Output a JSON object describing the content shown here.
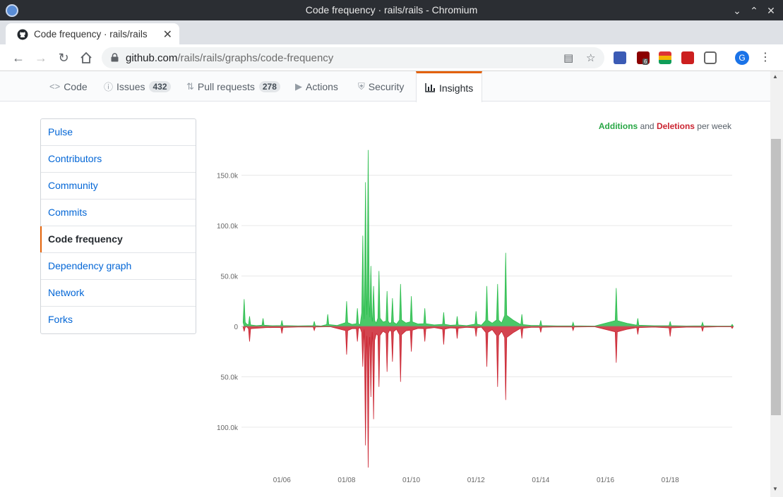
{
  "window": {
    "title": "Code frequency · rails/rails - Chromium"
  },
  "browser": {
    "tab_title": "Code frequency · rails/rails",
    "new_tab_label": "+",
    "url_host": "github.com",
    "url_path": "/rails/rails/graphs/code-frequency",
    "extension_badge": "6",
    "profile_initial": "G"
  },
  "repo_nav": {
    "tabs": [
      {
        "label": "Code",
        "icon": "code-icon"
      },
      {
        "label": "Issues",
        "icon": "issue-icon",
        "count": "432"
      },
      {
        "label": "Pull requests",
        "icon": "pull-request-icon",
        "count": "278"
      },
      {
        "label": "Actions",
        "icon": "play-icon"
      },
      {
        "label": "Security",
        "icon": "shield-icon"
      },
      {
        "label": "Insights",
        "icon": "graph-icon",
        "selected": true
      }
    ]
  },
  "sidebar": {
    "items": [
      {
        "label": "Pulse"
      },
      {
        "label": "Contributors"
      },
      {
        "label": "Community"
      },
      {
        "label": "Commits"
      },
      {
        "label": "Code frequency",
        "selected": true
      },
      {
        "label": "Dependency graph"
      },
      {
        "label": "Network"
      },
      {
        "label": "Forks"
      }
    ]
  },
  "legend": {
    "additions": "Additions",
    "and": "and",
    "deletions": "Deletions",
    "suffix": "per week"
  },
  "chart_data": {
    "type": "area",
    "title": "",
    "xlabel": "",
    "ylabel": "",
    "x_ticks": [
      "01/06",
      "01/08",
      "01/10",
      "01/12",
      "01/14",
      "01/16",
      "01/18"
    ],
    "y_ticks_top": [
      "150.0k",
      "100.0k",
      "50.0k",
      "0"
    ],
    "y_ticks_bottom": [
      "50.0k",
      "100.0k"
    ],
    "ylim": [
      -140000,
      175000
    ],
    "grid": true,
    "colors": {
      "additions": "#2cbe4e",
      "deletions": "#cb2431"
    },
    "series": [
      {
        "name": "Additions",
        "points": [
          [
            "2004-11",
            27000
          ],
          [
            "2005-01",
            10000
          ],
          [
            "2005-06",
            8000
          ],
          [
            "2006-01",
            6000
          ],
          [
            "2007-01",
            5000
          ],
          [
            "2007-06",
            12000
          ],
          [
            "2008-01",
            25000
          ],
          [
            "2008-05",
            18000
          ],
          [
            "2008-07",
            90000
          ],
          [
            "2008-08",
            143000
          ],
          [
            "2008-09",
            175000
          ],
          [
            "2008-10",
            60000
          ],
          [
            "2008-11",
            40000
          ],
          [
            "2009-01",
            55000
          ],
          [
            "2009-04",
            35000
          ],
          [
            "2009-06",
            28000
          ],
          [
            "2009-09",
            42000
          ],
          [
            "2010-01",
            30000
          ],
          [
            "2010-06",
            18000
          ],
          [
            "2011-01",
            14000
          ],
          [
            "2011-06",
            10000
          ],
          [
            "2012-01",
            15000
          ],
          [
            "2012-05",
            40000
          ],
          [
            "2012-09",
            42000
          ],
          [
            "2012-12",
            73000
          ],
          [
            "2013-06",
            12000
          ],
          [
            "2014-01",
            6000
          ],
          [
            "2015-01",
            4000
          ],
          [
            "2016-05",
            38000
          ],
          [
            "2017-01",
            8000
          ],
          [
            "2018-01",
            5000
          ],
          [
            "2019-01",
            4000
          ],
          [
            "2019-12",
            2000
          ]
        ]
      },
      {
        "name": "Deletions",
        "points": [
          [
            "2004-11",
            -5000
          ],
          [
            "2005-01",
            -15000
          ],
          [
            "2006-01",
            -7000
          ],
          [
            "2007-01",
            -4000
          ],
          [
            "2008-01",
            -28000
          ],
          [
            "2008-05",
            -15000
          ],
          [
            "2008-07",
            -40000
          ],
          [
            "2008-08",
            -118000
          ],
          [
            "2008-09",
            -140000
          ],
          [
            "2008-10",
            -70000
          ],
          [
            "2008-11",
            -92000
          ],
          [
            "2009-01",
            -60000
          ],
          [
            "2009-04",
            -45000
          ],
          [
            "2009-06",
            -35000
          ],
          [
            "2009-09",
            -55000
          ],
          [
            "2010-01",
            -25000
          ],
          [
            "2010-06",
            -15000
          ],
          [
            "2011-01",
            -18000
          ],
          [
            "2011-06",
            -12000
          ],
          [
            "2012-01",
            -10000
          ],
          [
            "2012-05",
            -40000
          ],
          [
            "2012-09",
            -60000
          ],
          [
            "2012-12",
            -73000
          ],
          [
            "2013-06",
            -12000
          ],
          [
            "2014-01",
            -6000
          ],
          [
            "2015-01",
            -4000
          ],
          [
            "2016-05",
            -36000
          ],
          [
            "2017-01",
            -8000
          ],
          [
            "2018-01",
            -10000
          ],
          [
            "2019-01",
            -5000
          ],
          [
            "2019-12",
            -2000
          ]
        ]
      }
    ]
  }
}
